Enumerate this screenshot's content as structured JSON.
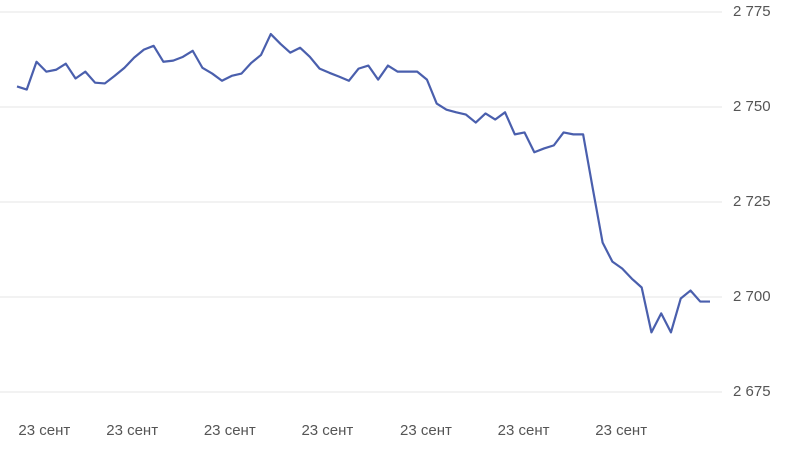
{
  "chart_data": {
    "type": "line",
    "x": [
      0,
      1,
      2,
      3,
      4,
      5,
      6,
      7,
      8,
      9,
      10,
      11,
      12,
      13,
      14,
      15,
      16,
      17,
      18,
      19,
      20,
      21,
      22,
      23,
      24,
      25,
      26,
      27,
      28,
      29,
      30,
      31,
      32,
      33,
      34,
      35,
      36,
      37,
      38,
      39,
      40,
      41,
      42,
      43,
      44,
      45,
      46,
      47,
      48,
      49,
      50,
      51,
      52,
      53,
      54,
      55,
      56,
      57,
      58,
      59,
      60,
      61,
      62,
      63,
      64,
      65,
      66,
      67,
      68,
      69,
      70,
      71
    ],
    "series": [
      {
        "color": "#4a5fad",
        "values": [
          2755.4,
          2754.6,
          2761.9,
          2759.3,
          2759.8,
          2761.4,
          2757.5,
          2759.3,
          2756.4,
          2756.2,
          2758.2,
          2760.3,
          2763.0,
          2765.1,
          2766.1,
          2761.9,
          2762.2,
          2763.2,
          2764.8,
          2760.3,
          2758.8,
          2756.9,
          2758.2,
          2758.8,
          2761.6,
          2763.7,
          2769.2,
          2766.6,
          2764.3,
          2765.6,
          2763.2,
          2760.1,
          2759.0,
          2758.0,
          2756.9,
          2760.1,
          2760.9,
          2757.2,
          2760.9,
          2759.3,
          2759.3,
          2759.3,
          2757.2,
          2750.9,
          2749.3,
          2748.6,
          2748.0,
          2745.9,
          2748.3,
          2746.7,
          2748.6,
          2742.8,
          2743.3,
          2738.1,
          2739.1,
          2739.9,
          2743.3,
          2742.8,
          2742.8,
          2728.4,
          2714.3,
          2709.3,
          2707.5,
          2704.8,
          2702.5,
          2690.7,
          2695.7,
          2690.7,
          2699.6,
          2701.7,
          2698.8,
          2698.8
        ]
      }
    ],
    "xlim": [
      0,
      71
    ],
    "xticks": [
      {
        "value": 2.8,
        "label": "23 сент"
      },
      {
        "value": 11.8,
        "label": "23 сент"
      },
      {
        "value": 21.8,
        "label": "23 сент"
      },
      {
        "value": 31.8,
        "label": "23 сент"
      },
      {
        "value": 41.9,
        "label": "23 сент"
      },
      {
        "value": 51.9,
        "label": "23 сент"
      },
      {
        "value": 61.9,
        "label": "23 сент"
      }
    ],
    "ylim": [
      2675,
      2775
    ],
    "yticks": [
      {
        "value": 2675,
        "label": "2 675"
      },
      {
        "value": 2700,
        "label": "2 700"
      },
      {
        "value": 2725,
        "label": "2 725"
      },
      {
        "value": 2750,
        "label": "2 750"
      },
      {
        "value": 2775,
        "label": "2 775"
      }
    ],
    "grid": true
  }
}
